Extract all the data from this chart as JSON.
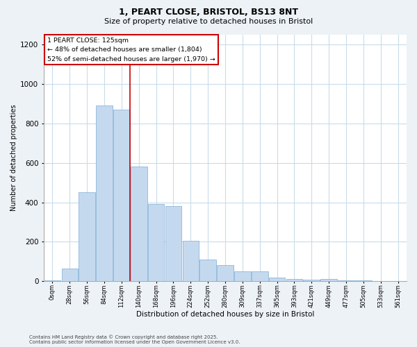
{
  "title_line1": "1, PEART CLOSE, BRISTOL, BS13 8NT",
  "title_line2": "Size of property relative to detached houses in Bristol",
  "xlabel": "Distribution of detached houses by size in Bristol",
  "ylabel": "Number of detached properties",
  "bar_labels": [
    "0sqm",
    "28sqm",
    "56sqm",
    "84sqm",
    "112sqm",
    "140sqm",
    "168sqm",
    "196sqm",
    "224sqm",
    "252sqm",
    "280sqm",
    "309sqm",
    "337sqm",
    "365sqm",
    "393sqm",
    "421sqm",
    "449sqm",
    "477sqm",
    "505sqm",
    "533sqm",
    "561sqm"
  ],
  "bar_values": [
    5,
    65,
    450,
    890,
    870,
    580,
    390,
    380,
    205,
    110,
    80,
    50,
    50,
    18,
    10,
    8,
    12,
    5,
    3,
    2,
    2
  ],
  "bar_color": "#c5d9ee",
  "bar_edge_color": "#7aadd4",
  "vline_x": 4.5,
  "vline_color": "#cc0000",
  "ylim_max": 1250,
  "yticks": [
    0,
    200,
    400,
    600,
    800,
    1000,
    1200
  ],
  "annotation_line1": "1 PEART CLOSE: 125sqm",
  "annotation_line2": "← 48% of detached houses are smaller (1,804)",
  "annotation_line3": "52% of semi-detached houses are larger (1,970) →",
  "footer_text": "Contains HM Land Registry data © Crown copyright and database right 2025.\nContains public sector information licensed under the Open Government Licence v3.0.",
  "bg_color": "#edf2f7",
  "plot_bg_color": "#ffffff",
  "grid_color": "#c8dcea",
  "title_fontsize": 9,
  "subtitle_fontsize": 8
}
